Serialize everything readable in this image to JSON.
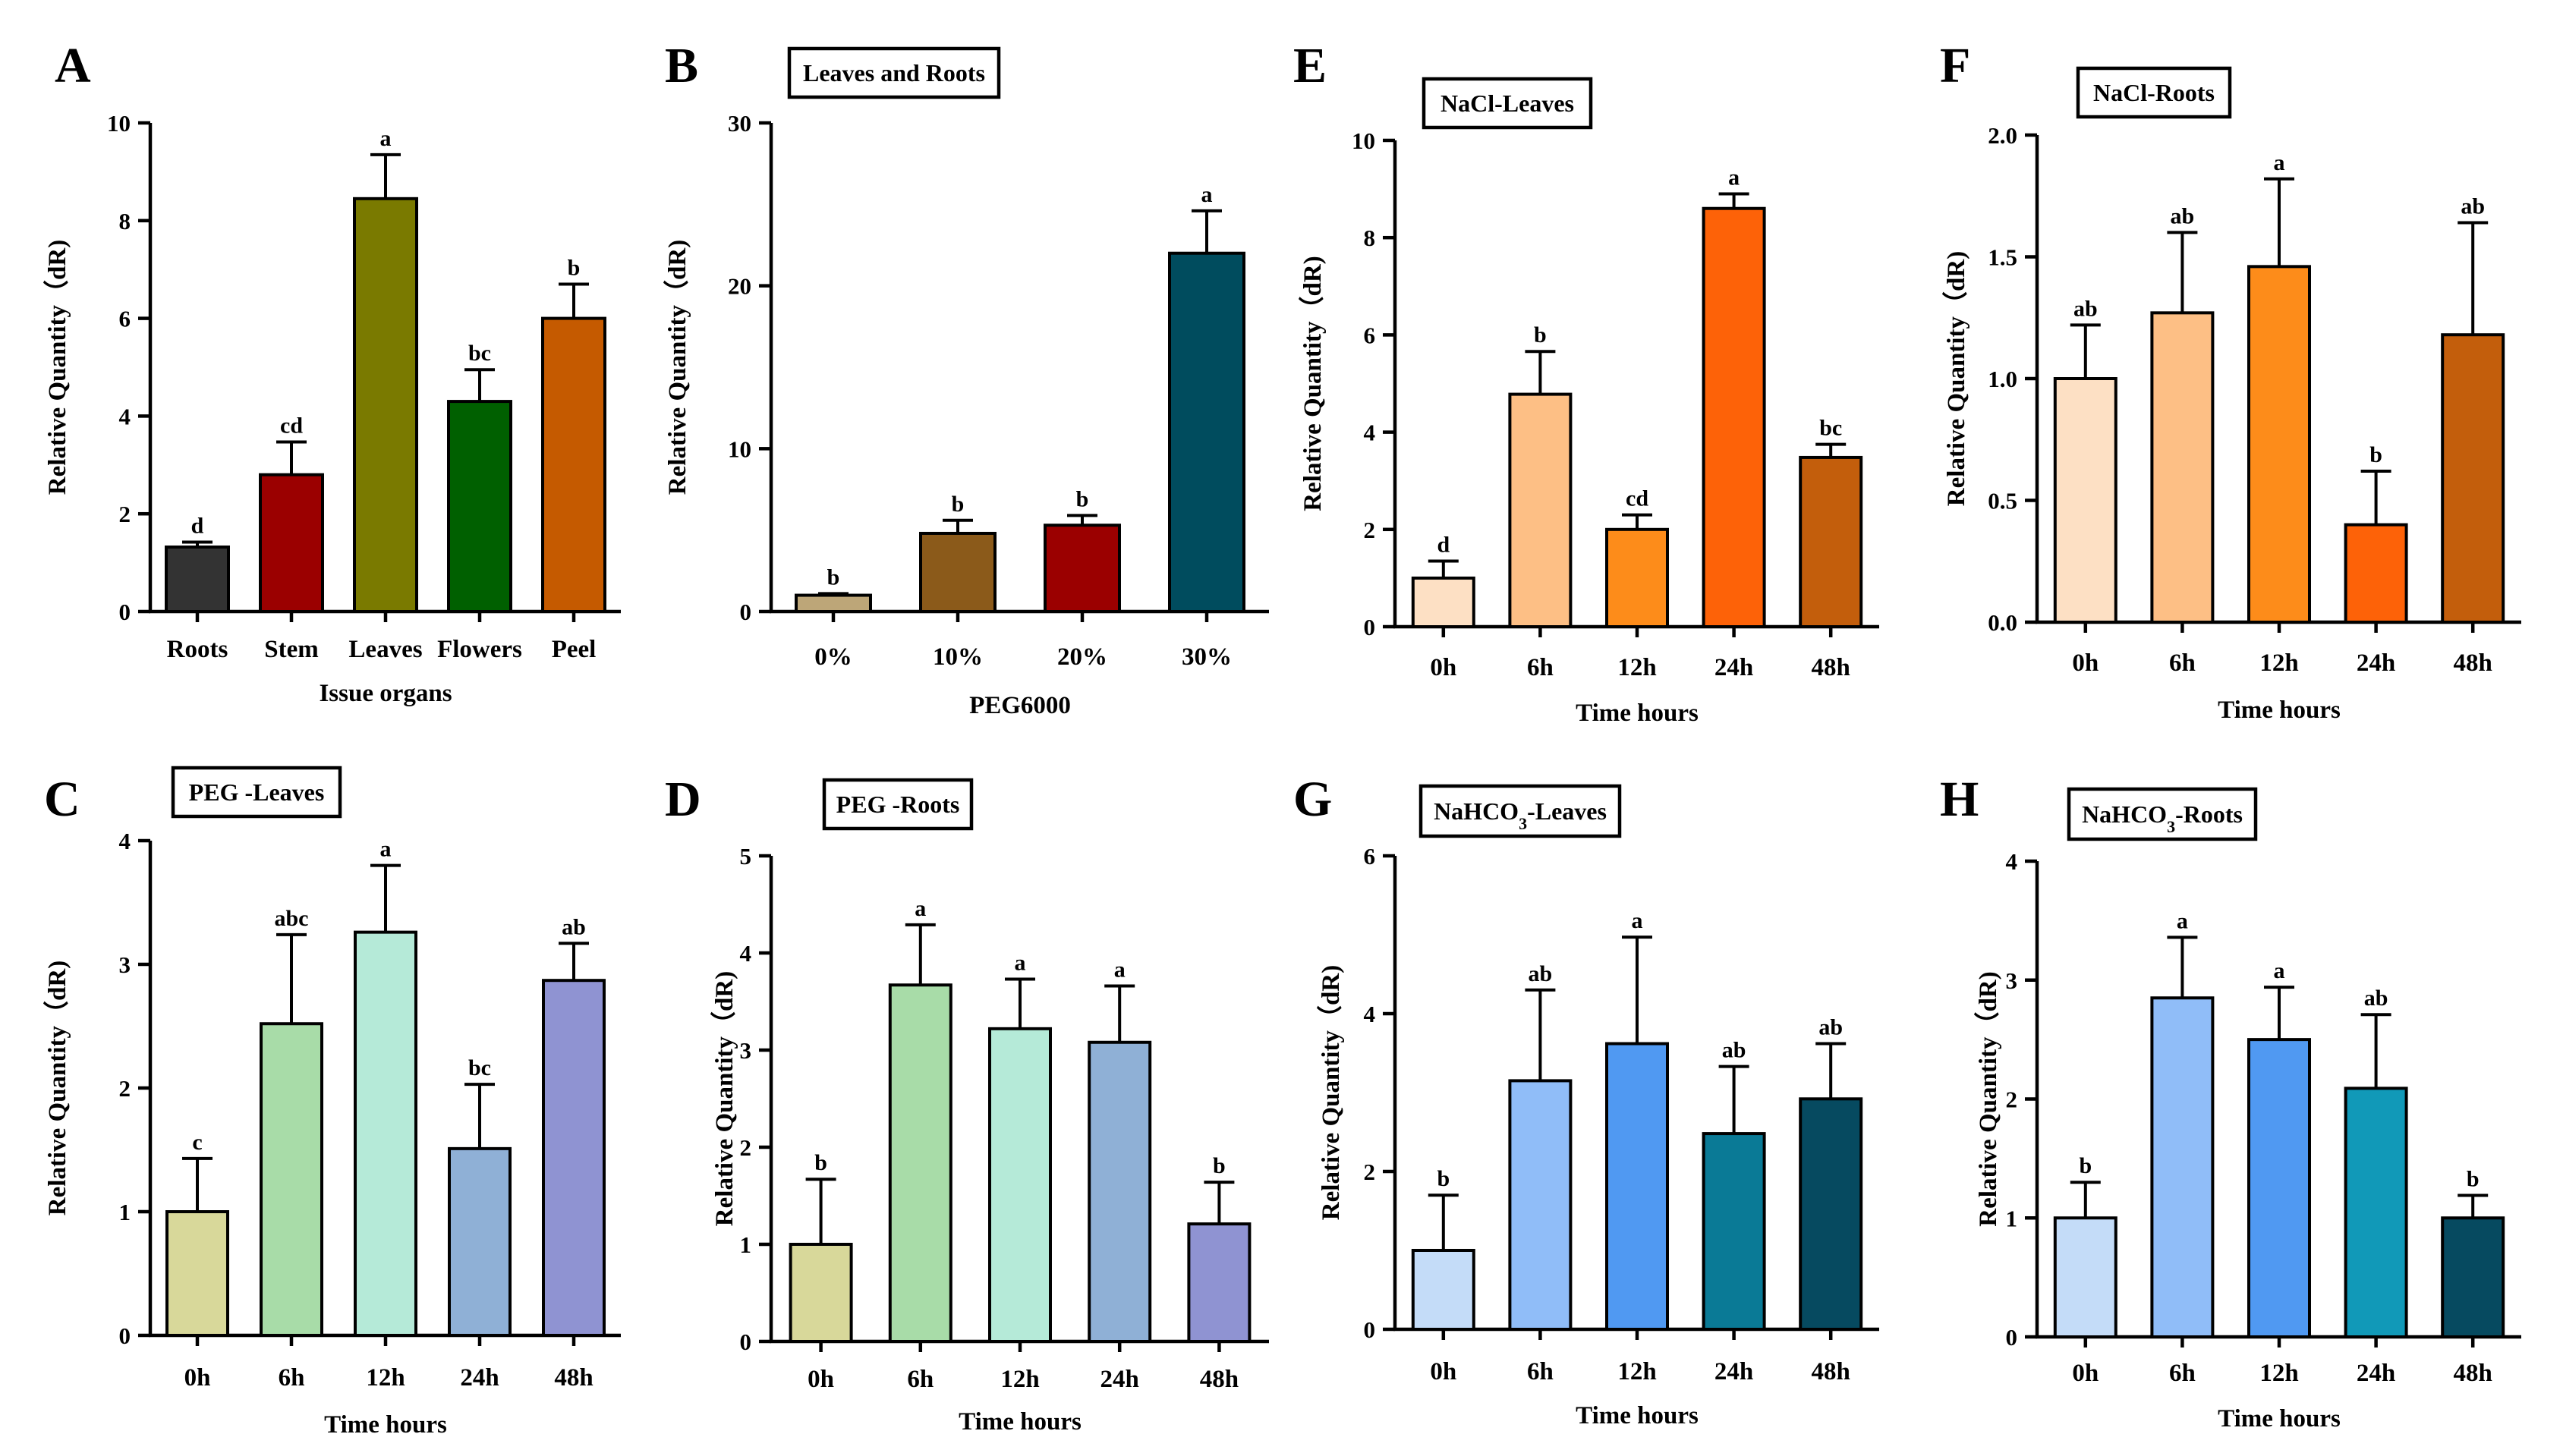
{
  "chart_data": [
    {
      "id": "A",
      "type": "bar",
      "title": "",
      "categories": [
        "Roots",
        "Stem",
        "Leaves",
        "Flowers",
        "Peel"
      ],
      "values": [
        1.32,
        2.8,
        8.45,
        4.3,
        6.0
      ],
      "errors": [
        0.1,
        0.67,
        0.9,
        0.65,
        0.7
      ],
      "significance": [
        "d",
        "cd",
        "a",
        "bc",
        "b"
      ],
      "colors": [
        "#333333",
        "#9b0000",
        "#7a7a00",
        "#006000",
        "#c55a00"
      ],
      "xlabel": "Issue organs",
      "ylabel": "Relative Quantity（dR)",
      "ylim": [
        0,
        10
      ],
      "yticks": [
        0,
        2,
        4,
        6,
        8,
        10
      ]
    },
    {
      "id": "B",
      "type": "bar",
      "title": "Leaves and Roots",
      "categories": [
        "0%",
        "10%",
        "20%",
        "30%"
      ],
      "values": [
        1.0,
        4.8,
        5.3,
        22.0
      ],
      "errors": [
        0.1,
        0.8,
        0.6,
        2.6
      ],
      "significance": [
        "b",
        "b",
        "b",
        "a"
      ],
      "colors": [
        "#bda678",
        "#8b5a1a",
        "#9b0000",
        "#004c5e"
      ],
      "xlabel": "PEG6000",
      "ylabel": "Relative Quantity（dR)",
      "ylim": [
        0,
        30
      ],
      "yticks": [
        0,
        10,
        20,
        30
      ]
    },
    {
      "id": "C",
      "type": "bar",
      "title": "PEG -Leaves",
      "categories": [
        "0h",
        "6h",
        "12h",
        "24h",
        "48h"
      ],
      "values": [
        1.0,
        2.52,
        3.26,
        1.51,
        2.87
      ],
      "errors": [
        0.43,
        0.72,
        0.54,
        0.52,
        0.3
      ],
      "significance": [
        "c",
        "abc",
        "a",
        "bc",
        "ab"
      ],
      "colors": [
        "#d8d89a",
        "#a8dca8",
        "#b5ead8",
        "#8fb0d6",
        "#8f93d2"
      ],
      "xlabel": "Time hours",
      "ylabel": "Relative Quantity（dR)",
      "ylim": [
        0,
        4
      ],
      "yticks": [
        0,
        1,
        2,
        3,
        4
      ]
    },
    {
      "id": "D",
      "type": "bar",
      "title": "PEG -Roots",
      "categories": [
        "0h",
        "6h",
        "12h",
        "24h",
        "48h"
      ],
      "values": [
        1.0,
        3.67,
        3.22,
        3.08,
        1.21
      ],
      "errors": [
        0.67,
        0.62,
        0.51,
        0.58,
        0.43
      ],
      "significance": [
        "b",
        "a",
        "a",
        "a",
        "b"
      ],
      "colors": [
        "#d8d89a",
        "#a8dca8",
        "#b5ead8",
        "#8fb0d6",
        "#8f93d2"
      ],
      "xlabel": "Time hours",
      "ylabel": "Relative Quantity（dR)",
      "ylim": [
        0,
        5
      ],
      "yticks": [
        0,
        1,
        2,
        3,
        4,
        5
      ]
    },
    {
      "id": "E",
      "type": "bar",
      "title": "NaCl-Leaves",
      "categories": [
        "0h",
        "6h",
        "12h",
        "24h",
        "48h"
      ],
      "values": [
        1.0,
        4.78,
        2.0,
        8.6,
        3.48
      ],
      "errors": [
        0.35,
        0.88,
        0.3,
        0.3,
        0.27
      ],
      "significance": [
        "d",
        "b",
        "cd",
        "a",
        "bc"
      ],
      "colors": [
        "#fde0c4",
        "#fdbf85",
        "#fd8c1a",
        "#fd6208",
        "#c35e0c"
      ],
      "xlabel": "Time hours",
      "ylabel": "Relative Quantity（dR)",
      "ylim": [
        0,
        10
      ],
      "yticks": [
        0,
        2,
        4,
        6,
        8,
        10
      ]
    },
    {
      "id": "F",
      "type": "bar",
      "title": "NaCl-Roots",
      "categories": [
        "0h",
        "6h",
        "12h",
        "24h",
        "48h"
      ],
      "values": [
        1.0,
        1.27,
        1.46,
        0.4,
        1.18
      ],
      "errors": [
        0.22,
        0.33,
        0.36,
        0.22,
        0.46
      ],
      "significance": [
        "ab",
        "ab",
        "a",
        "b",
        "ab"
      ],
      "colors": [
        "#fde0c4",
        "#fdbf85",
        "#fd8c1a",
        "#fd6208",
        "#c35e0c"
      ],
      "xlabel": "Time hours",
      "ylabel": "Relative Quantity（dR)",
      "ylim": [
        0,
        2
      ],
      "yticks": [
        "0.0",
        "0.5",
        "1.0",
        "1.5",
        "2.0"
      ]
    },
    {
      "id": "G",
      "type": "bar",
      "title": "NaHCO3-Leaves",
      "title_parts": [
        "NaHCO",
        "3",
        "-Leaves"
      ],
      "categories": [
        "0h",
        "6h",
        "12h",
        "24h",
        "48h"
      ],
      "values": [
        1.0,
        3.15,
        3.62,
        2.48,
        2.92
      ],
      "errors": [
        0.7,
        1.15,
        1.35,
        0.85,
        0.7
      ],
      "significance": [
        "b",
        "ab",
        "a",
        "ab",
        "ab"
      ],
      "colors": [
        "#c4dcf8",
        "#90bdf8",
        "#5099f2",
        "#0a7a96",
        "#064a60"
      ],
      "xlabel": "Time hours",
      "ylabel": "Relative Quantity（dR)",
      "ylim": [
        0,
        6
      ],
      "yticks": [
        0,
        2,
        4,
        6
      ]
    },
    {
      "id": "H",
      "type": "bar",
      "title": "NaHCO3-Roots",
      "title_parts": [
        "NaHCO",
        "3",
        "-Roots"
      ],
      "categories": [
        "0h",
        "6h",
        "12h",
        "24h",
        "48h"
      ],
      "values": [
        1.0,
        2.85,
        2.5,
        2.09,
        1.0
      ],
      "errors": [
        0.3,
        0.51,
        0.44,
        0.62,
        0.19
      ],
      "significance": [
        "b",
        "a",
        "a",
        "ab",
        "b"
      ],
      "colors": [
        "#c4dcf8",
        "#90bdf8",
        "#5099f2",
        "#1199b8",
        "#064a60"
      ],
      "xlabel": "Time hours",
      "ylabel": "Relative Quantity（dR)",
      "ylim": [
        0,
        4
      ],
      "yticks": [
        0,
        1,
        2,
        3,
        4
      ]
    }
  ]
}
